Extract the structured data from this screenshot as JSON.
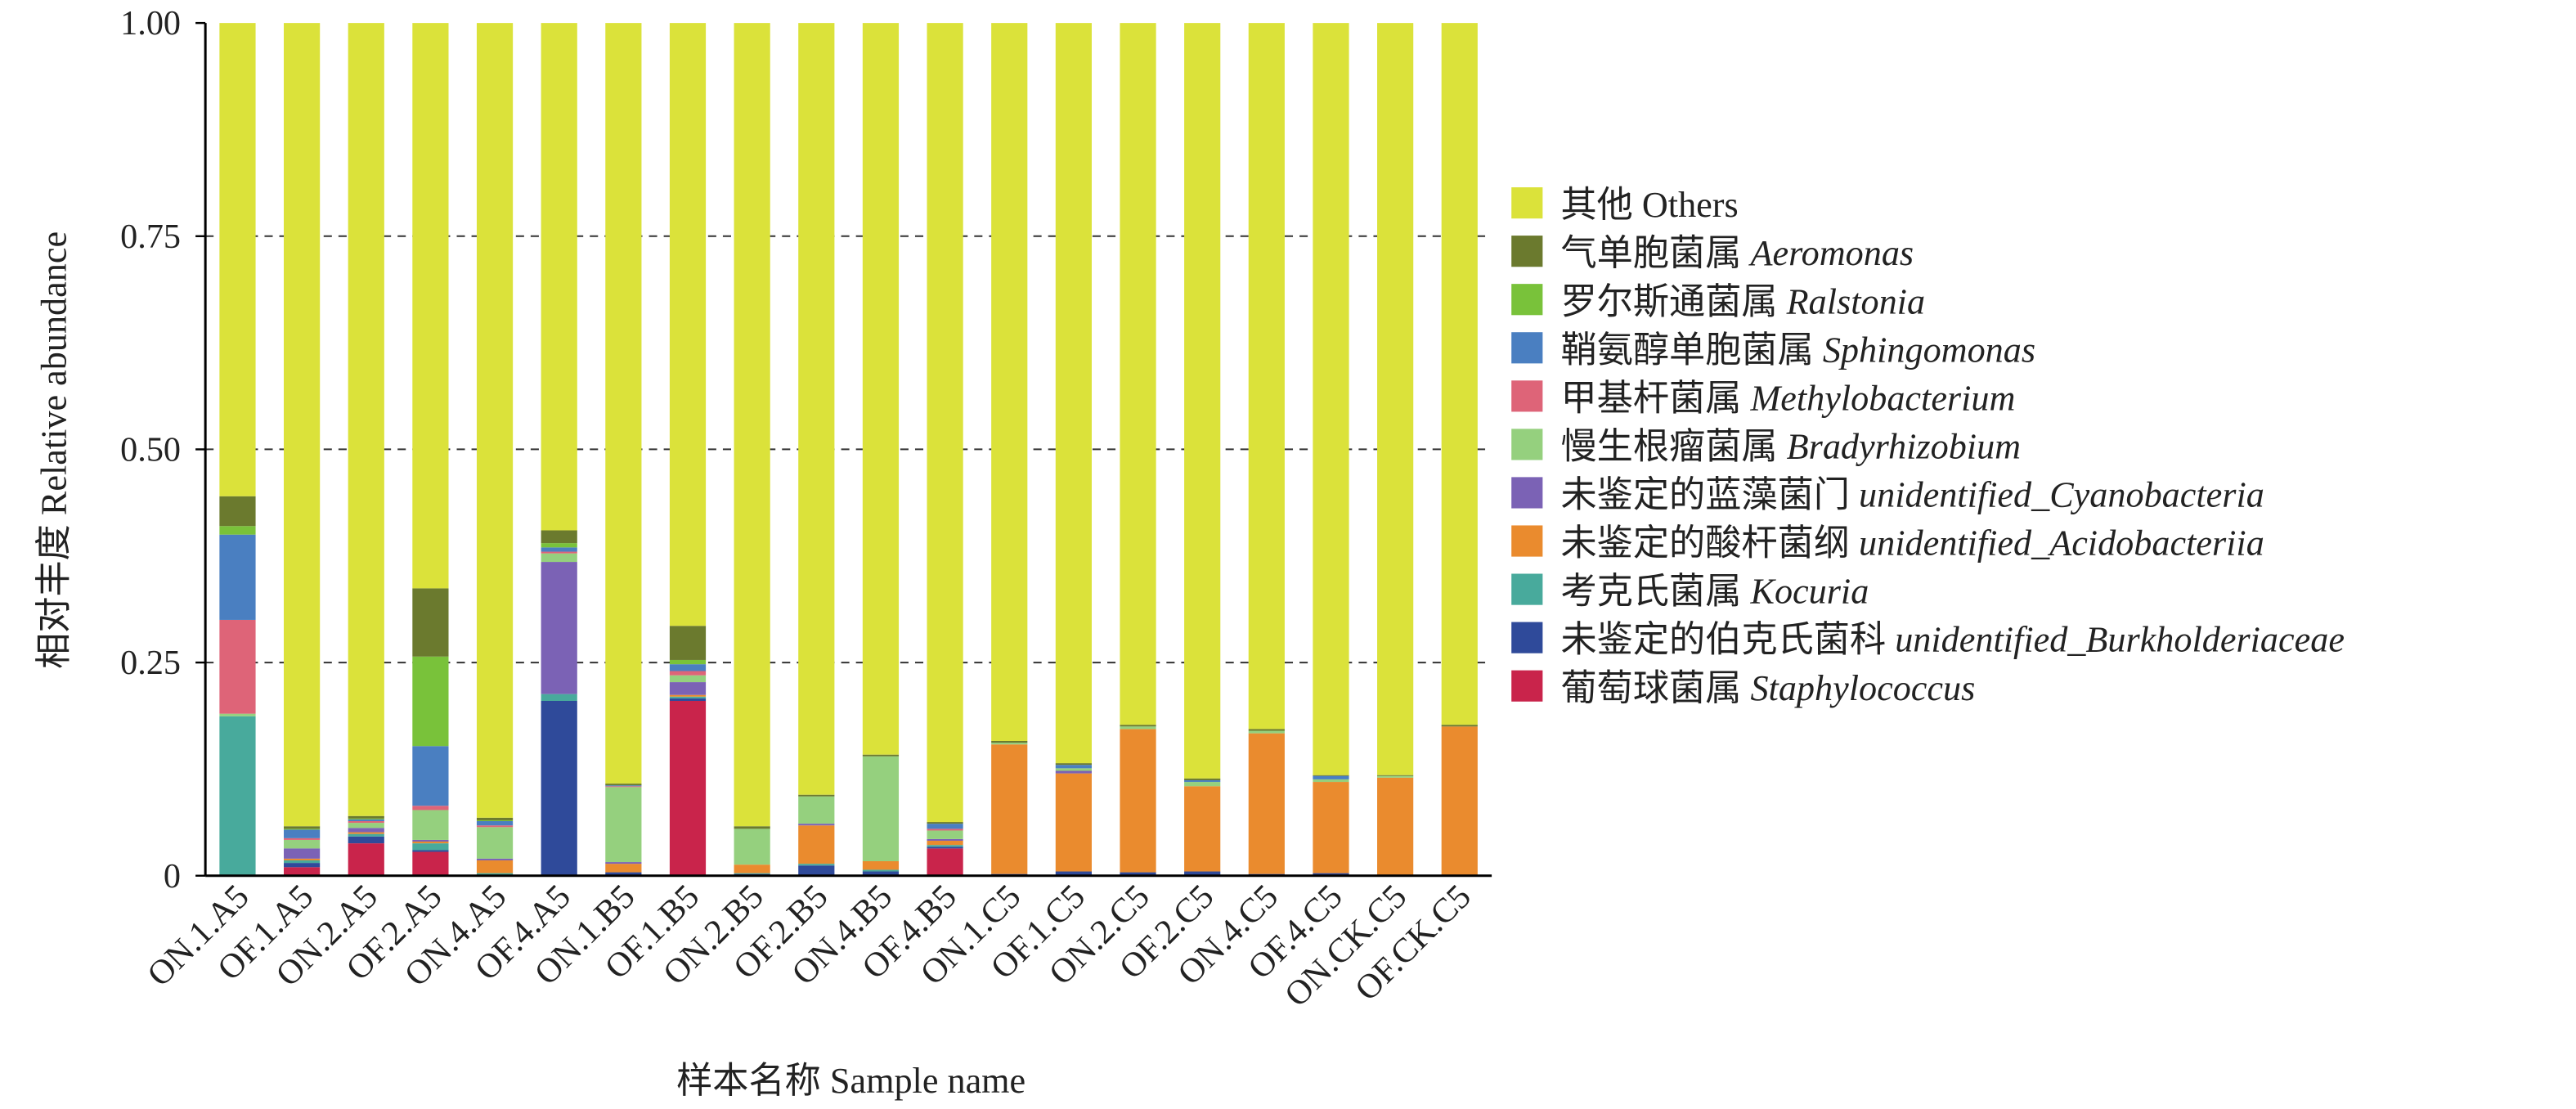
{
  "chart_data": {
    "type": "stacked-bar",
    "y_label": "相对丰度 Relative abundance",
    "x_label": "样本名称 Sample name",
    "categories": [
      "ON.1.A5",
      "OF.1.A5",
      "ON.2.A5",
      "OF.2.A5",
      "ON.4.A5",
      "OF.4.A5",
      "ON.1.B5",
      "OF.1.B5",
      "ON.2.B5",
      "OF.2.B5",
      "ON.4.B5",
      "OF.4.B5",
      "ON.1.C5",
      "OF.1.C5",
      "ON.2.C5",
      "OF.2.C5",
      "ON.4.C5",
      "OF.4.C5",
      "ON.CK.C5",
      "OF.CK.C5"
    ],
    "ylim": [
      0,
      1
    ],
    "yticks": [
      0,
      0.25,
      {
        "value": 0.5,
        "label": "0.50"
      },
      0.75,
      {
        "value": 1,
        "label": "1.00"
      }
    ],
    "grid": true,
    "series": [
      {
        "name": "葡萄球菌属 Staphylococcus",
        "italic": true,
        "color": "#c9244b",
        "values": [
          0,
          0.01,
          0.038,
          0.028,
          0,
          0,
          0,
          0.205,
          0,
          0,
          0,
          0.032,
          0,
          0,
          0,
          0,
          0,
          0,
          0,
          0
        ]
      },
      {
        "name": "未鉴定的伯克氏菌科 unidentified_Burkholderiaceae",
        "italic": true,
        "color": "#2f4a9a",
        "values": [
          0,
          0.005,
          0.008,
          0.002,
          0.001,
          0.205,
          0.004,
          0.003,
          0.002,
          0.012,
          0.005,
          0.002,
          0.002,
          0.005,
          0.004,
          0.005,
          0.002,
          0.003,
          0,
          0
        ]
      },
      {
        "name": "考克氏菌属 Kocuria",
        "italic": true,
        "color": "#48aa9c",
        "values": [
          0.187,
          0.003,
          0.003,
          0.008,
          0.002,
          0.008,
          0,
          0.002,
          0.001,
          0.002,
          0.002,
          0.002,
          0,
          0,
          0,
          0,
          0,
          0,
          0,
          0
        ]
      },
      {
        "name": "未鉴定的酸杆菌纲 unidentified_Acidobacteriia",
        "italic": true,
        "color": "#ea8b2e",
        "values": [
          0,
          0.002,
          0.002,
          0.002,
          0.015,
          0,
          0.01,
          0.002,
          0.01,
          0.045,
          0.01,
          0.005,
          0.152,
          0.115,
          0.168,
          0.1,
          0.165,
          0.107,
          0.115,
          0.175
        ]
      },
      {
        "name": "未鉴定的蓝藻菌门 unidentified_Cyanobacteria",
        "italic": true,
        "color": "#7b62b5",
        "values": [
          0,
          0.012,
          0.005,
          0.002,
          0.002,
          0.155,
          0.002,
          0.015,
          0,
          0.002,
          0,
          0.002,
          0,
          0.003,
          0,
          0,
          0,
          0,
          0,
          0
        ]
      },
      {
        "name": "慢生根瘤菌属 Bradyrhizobium",
        "italic": true,
        "color": "#95d07e",
        "values": [
          0.003,
          0.01,
          0.006,
          0.035,
          0.037,
          0.01,
          0.088,
          0.008,
          0.042,
          0.032,
          0.123,
          0.01,
          0.002,
          0.003,
          0.003,
          0.005,
          0.003,
          0.003,
          0.002,
          0
        ]
      },
      {
        "name": "甲基杆菌属 Methylobacterium",
        "italic": true,
        "color": "#de6478",
        "values": [
          0.11,
          0.002,
          0.002,
          0.005,
          0.002,
          0.002,
          0.001,
          0.005,
          0,
          0,
          0,
          0.002,
          0,
          0,
          0,
          0,
          0,
          0,
          0,
          0
        ]
      },
      {
        "name": "鞘氨醇单胞菌属 Sphingomonas",
        "italic": true,
        "color": "#4a7fc1",
        "values": [
          0.1,
          0.01,
          0.002,
          0.07,
          0.005,
          0.005,
          0.001,
          0.008,
          0,
          0,
          0,
          0.006,
          0,
          0.004,
          0,
          0.002,
          0,
          0.004,
          0,
          0
        ]
      },
      {
        "name": "罗尔斯通菌属 Ralstonia",
        "italic": true,
        "color": "#79c23a",
        "values": [
          0.01,
          0.001,
          0.001,
          0.105,
          0.001,
          0.005,
          0,
          0.005,
          0,
          0,
          0,
          0,
          0,
          0,
          0,
          0,
          0,
          0,
          0,
          0
        ]
      },
      {
        "name": "气单胞菌属 Aeromonas",
        "italic": true,
        "color": "#6b7a2e",
        "values": [
          0.035,
          0.003,
          0.003,
          0.08,
          0.003,
          0.015,
          0.002,
          0.04,
          0.003,
          0.002,
          0.002,
          0.002,
          0.002,
          0.002,
          0.002,
          0.002,
          0.002,
          0.001,
          0.001,
          0.002
        ]
      },
      {
        "name": "其他 Others",
        "italic": false,
        "color": "#dbe23a",
        "values": [
          0.555,
          0.942,
          0.93,
          0.663,
          0.932,
          0.595,
          0.892,
          0.707,
          0.942,
          0.905,
          0.858,
          0.937,
          0.842,
          0.868,
          0.823,
          0.886,
          0.828,
          0.882,
          0.882,
          0.823
        ]
      }
    ]
  }
}
